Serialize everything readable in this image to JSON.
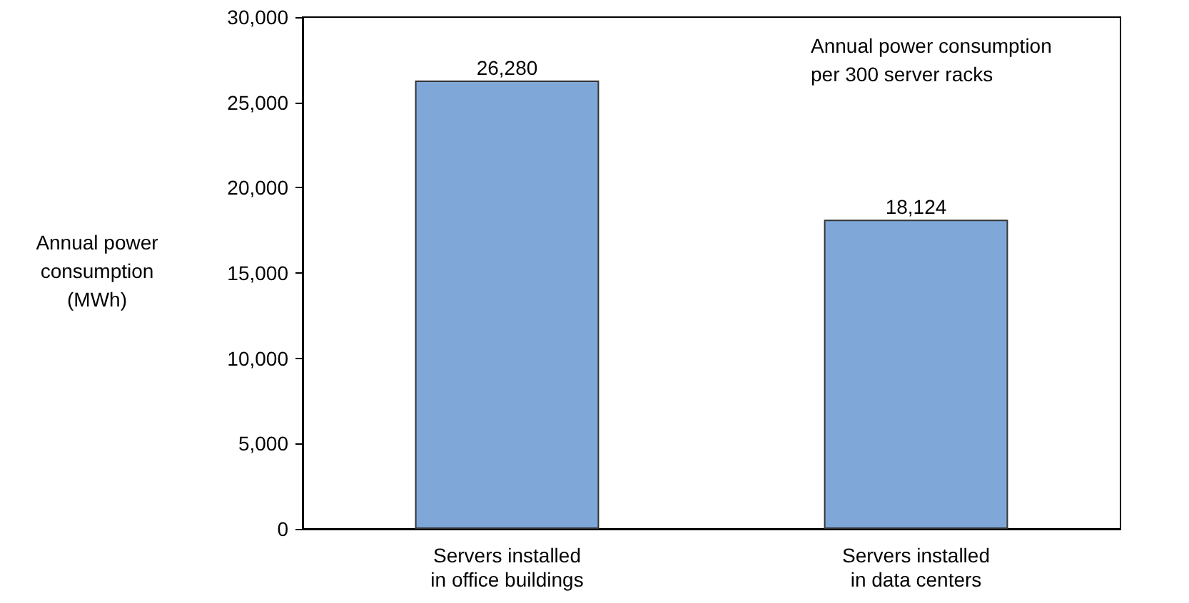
{
  "chart_data": {
    "type": "bar",
    "title": "Annual power consumption\nper 300 server racks",
    "ylabel": "Annual power\nconsumption\n(MWh)",
    "categories": [
      "Servers installed\nin office buildings",
      "Servers installed\nin data centers"
    ],
    "values": [
      26280,
      18124
    ],
    "color": "#7fa8d9",
    "ylim": [
      0,
      30000
    ],
    "yticks": [
      {
        "value": 0,
        "label": "0"
      },
      {
        "value": 5000,
        "label": "5,000"
      },
      {
        "value": 10000,
        "label": "10,000"
      },
      {
        "value": 15000,
        "label": "15,000"
      },
      {
        "value": 20000,
        "label": "20,000"
      },
      {
        "value": 25000,
        "label": "25,000"
      },
      {
        "value": 30000,
        "label": "30,000"
      }
    ],
    "value_labels": [
      "26,280",
      "18,124"
    ],
    "grid": false
  }
}
